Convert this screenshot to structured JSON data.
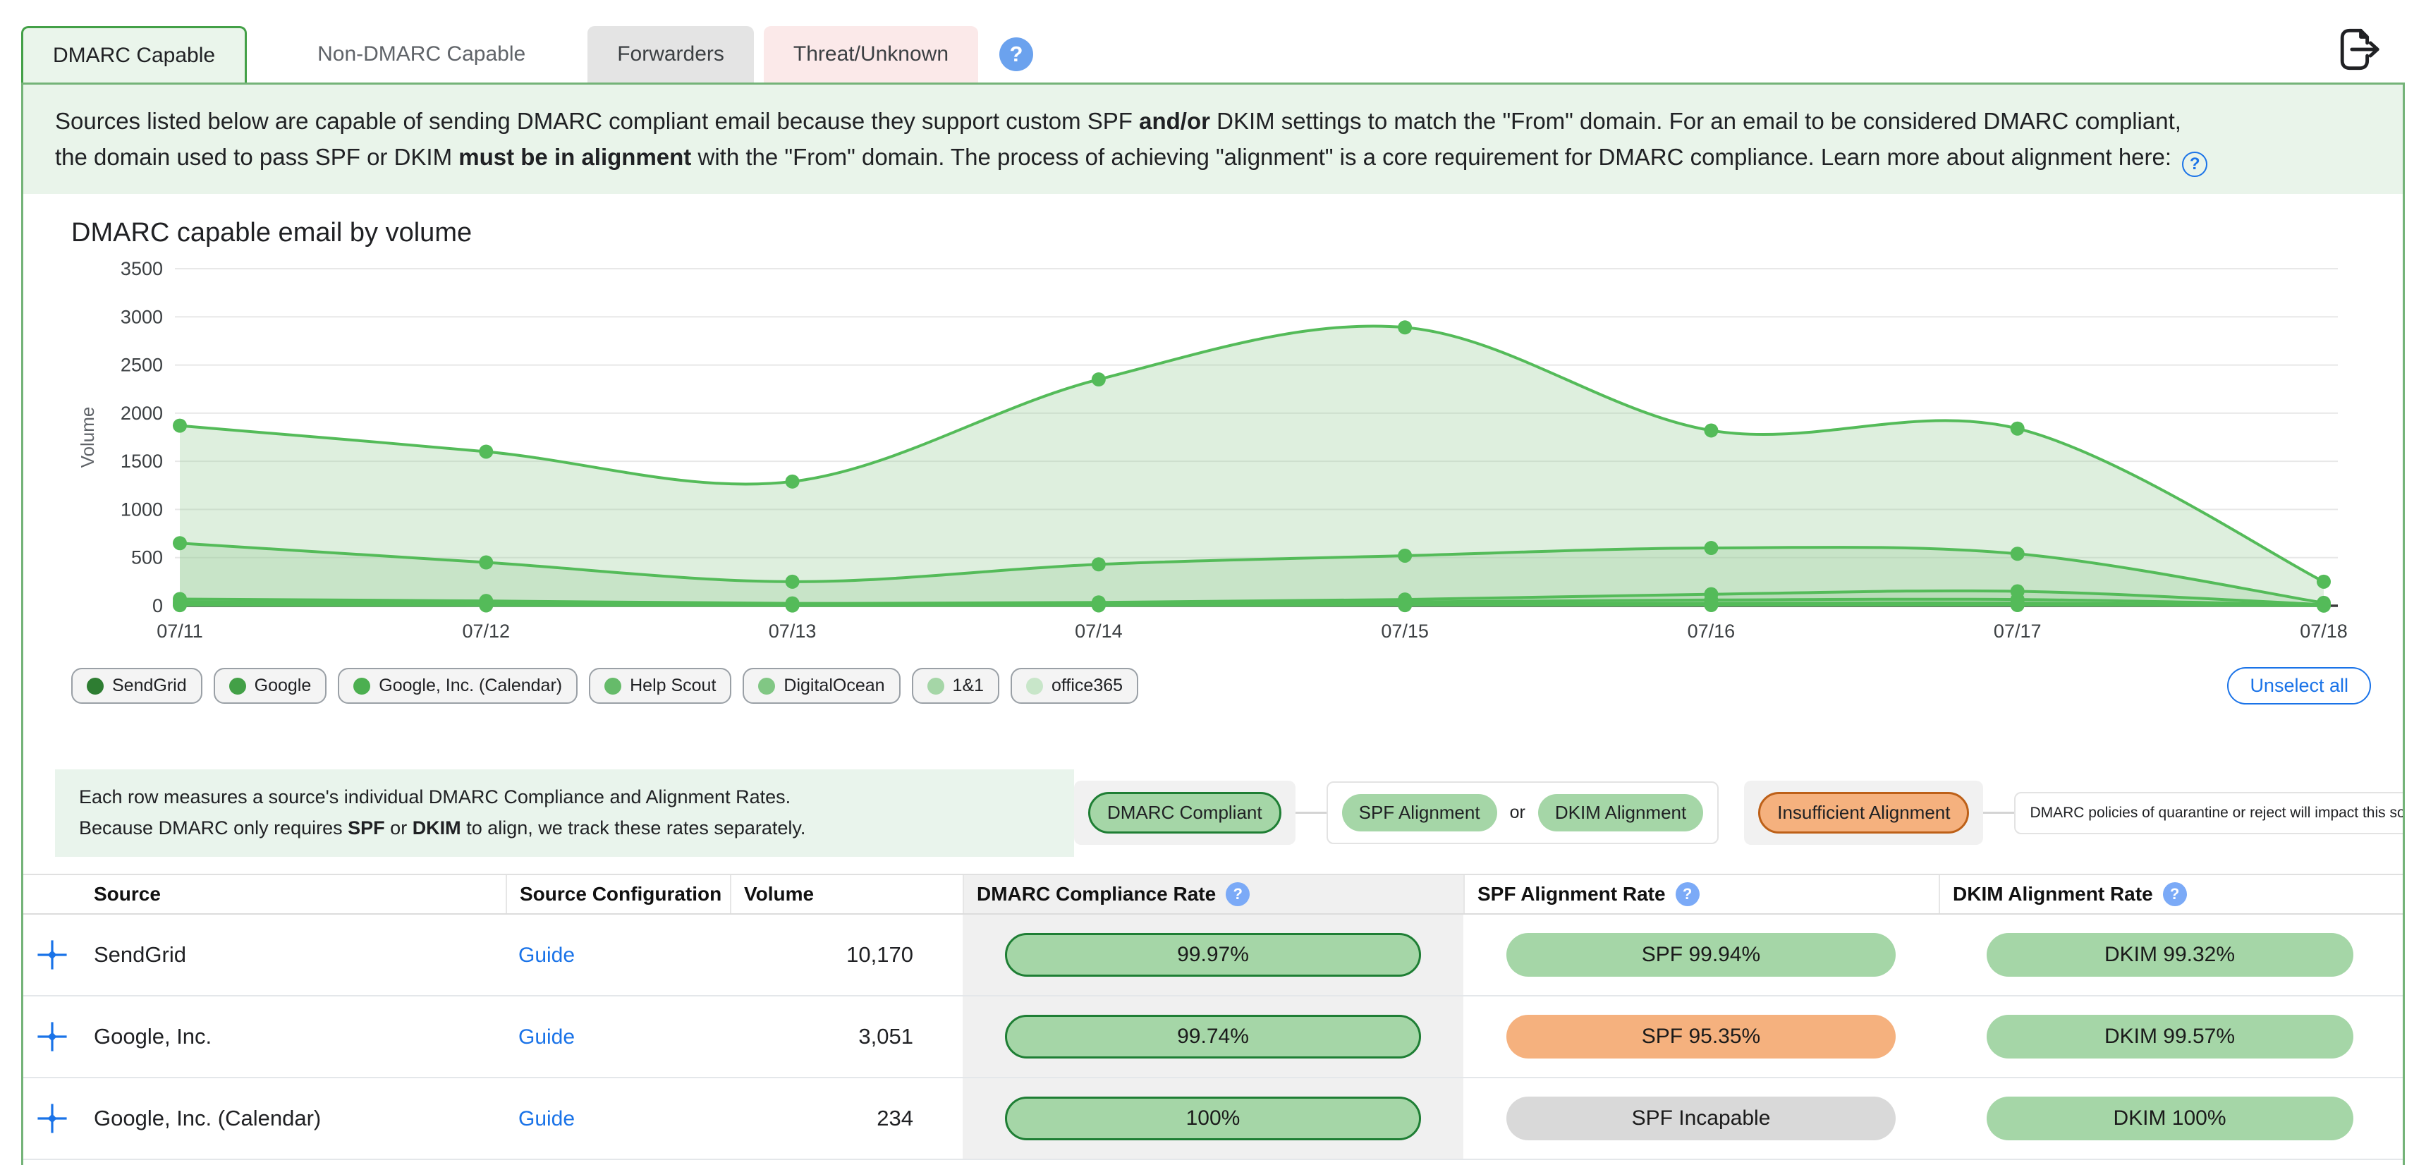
{
  "tabs": {
    "items": [
      {
        "label": "DMARC Capable",
        "style": "active"
      },
      {
        "label": "Non-DMARC Capable",
        "style": "plain"
      },
      {
        "label": "Forwarders",
        "style": "gray"
      },
      {
        "label": "Threat/Unknown",
        "style": "pink"
      }
    ],
    "help_glyph": "?"
  },
  "description": {
    "line1": [
      {
        "t": "Sources listed below are capable of sending DMARC compliant email because they support custom SPF "
      },
      {
        "t": "and/or",
        "b": 1
      },
      {
        "t": " DKIM settings to match the \"From\" domain. For an email to be considered DMARC compliant,"
      }
    ],
    "line2": [
      {
        "t": "the domain used to pass SPF or DKIM "
      },
      {
        "t": "must be in alignment",
        "b": 1
      },
      {
        "t": " with the \"From\" domain. The process of achieving \"alignment\" is a core requirement for DMARC compliance. Learn more about alignment here: "
      }
    ],
    "help_glyph": "?"
  },
  "chart_data": {
    "type": "area",
    "title": "DMARC capable email by volume",
    "xlabel": "",
    "ylabel": "Volume",
    "x_labels": [
      "07/11",
      "07/12",
      "07/13",
      "07/14",
      "07/15",
      "07/16",
      "07/17",
      "07/18"
    ],
    "yticks": [
      0,
      500,
      1000,
      1500,
      2000,
      2500,
      3000,
      3500
    ],
    "ylim": [
      0,
      3500
    ],
    "grid": true,
    "legend_position": "bottom",
    "line_color": "#54bb59",
    "fill_color": "#9bcf9c",
    "fill_opacity": 0.33,
    "series": [
      {
        "name": "SendGrid",
        "dot_color": "#2e7d32",
        "values": [
          1870,
          1600,
          1290,
          2350,
          2890,
          1820,
          1840,
          250
        ]
      },
      {
        "name": "Google",
        "dot_color": "#43a047",
        "values": [
          650,
          450,
          250,
          430,
          520,
          600,
          540,
          30
        ]
      },
      {
        "name": "Google, Inc. (Calendar)",
        "dot_color": "#4caf50",
        "values": [
          70,
          50,
          25,
          35,
          65,
          120,
          150,
          12
        ]
      },
      {
        "name": "Help Scout",
        "dot_color": "#66bb6a",
        "values": [
          40,
          30,
          18,
          25,
          40,
          60,
          65,
          8
        ]
      },
      {
        "name": "DigitalOcean",
        "dot_color": "#81c784",
        "values": [
          22,
          15,
          10,
          13,
          20,
          26,
          28,
          5
        ]
      },
      {
        "name": "1&1",
        "dot_color": "#a5d6a7",
        "values": [
          12,
          8,
          5,
          7,
          10,
          14,
          14,
          3
        ]
      },
      {
        "name": "office365",
        "dot_color": "#c8e6c9",
        "values": [
          6,
          4,
          3,
          4,
          6,
          7,
          7,
          2
        ]
      }
    ]
  },
  "chips": {
    "unselect_all": "Unselect all"
  },
  "table_note": {
    "line1": [
      {
        "t": "Each row measures a source's individual DMARC Compliance and Alignment Rates."
      }
    ],
    "line2": [
      {
        "t": "Because DMARC only requires "
      },
      {
        "t": "SPF",
        "b": 1
      },
      {
        "t": " or "
      },
      {
        "t": "DKIM",
        "b": 1
      },
      {
        "t": " to align, we track these rates separately."
      }
    ]
  },
  "rate_legend": {
    "compliant": "DMARC Compliant",
    "spf": "SPF Alignment",
    "or": "or",
    "dkim": "DKIM Alignment",
    "insufficient": "Insufficient Alignment",
    "note": "DMARC policies of quarantine or reject will impact this source"
  },
  "table": {
    "headers": {
      "source": "Source",
      "config": "Source Configuration",
      "volume": "Volume",
      "dmarc": "DMARC Compliance Rate",
      "spf": "SPF Alignment Rate",
      "dkim": "DKIM Alignment Rate"
    },
    "help_glyph": "?",
    "rows": [
      {
        "source": "SendGrid",
        "config": "Guide",
        "volume": "10,170",
        "dmarc": "99.97%",
        "spf": {
          "text": "SPF 99.94%",
          "status": "good"
        },
        "dkim": {
          "text": "DKIM 99.32%",
          "status": "good"
        }
      },
      {
        "source": "Google, Inc.",
        "config": "Guide",
        "volume": "3,051",
        "dmarc": "99.74%",
        "spf": {
          "text": "SPF 95.35%",
          "status": "warn"
        },
        "dkim": {
          "text": "DKIM 99.57%",
          "status": "good"
        }
      },
      {
        "source": "Google, Inc. (Calendar)",
        "config": "Guide",
        "volume": "234",
        "dmarc": "100%",
        "spf": {
          "text": "SPF Incapable",
          "status": "incapable"
        },
        "dkim": {
          "text": "DKIM 100%",
          "status": "good"
        }
      }
    ]
  },
  "colors": {
    "accent_green": "#43a047",
    "container_border": "#74b378",
    "pill_green": "#a5d6a7",
    "pill_green_border": "#1e7e34",
    "pill_orange": "#f5b17e",
    "pill_gray": "#d9d9d9",
    "link_blue": "#1a73e8",
    "help_blue": "#7baaf7"
  }
}
